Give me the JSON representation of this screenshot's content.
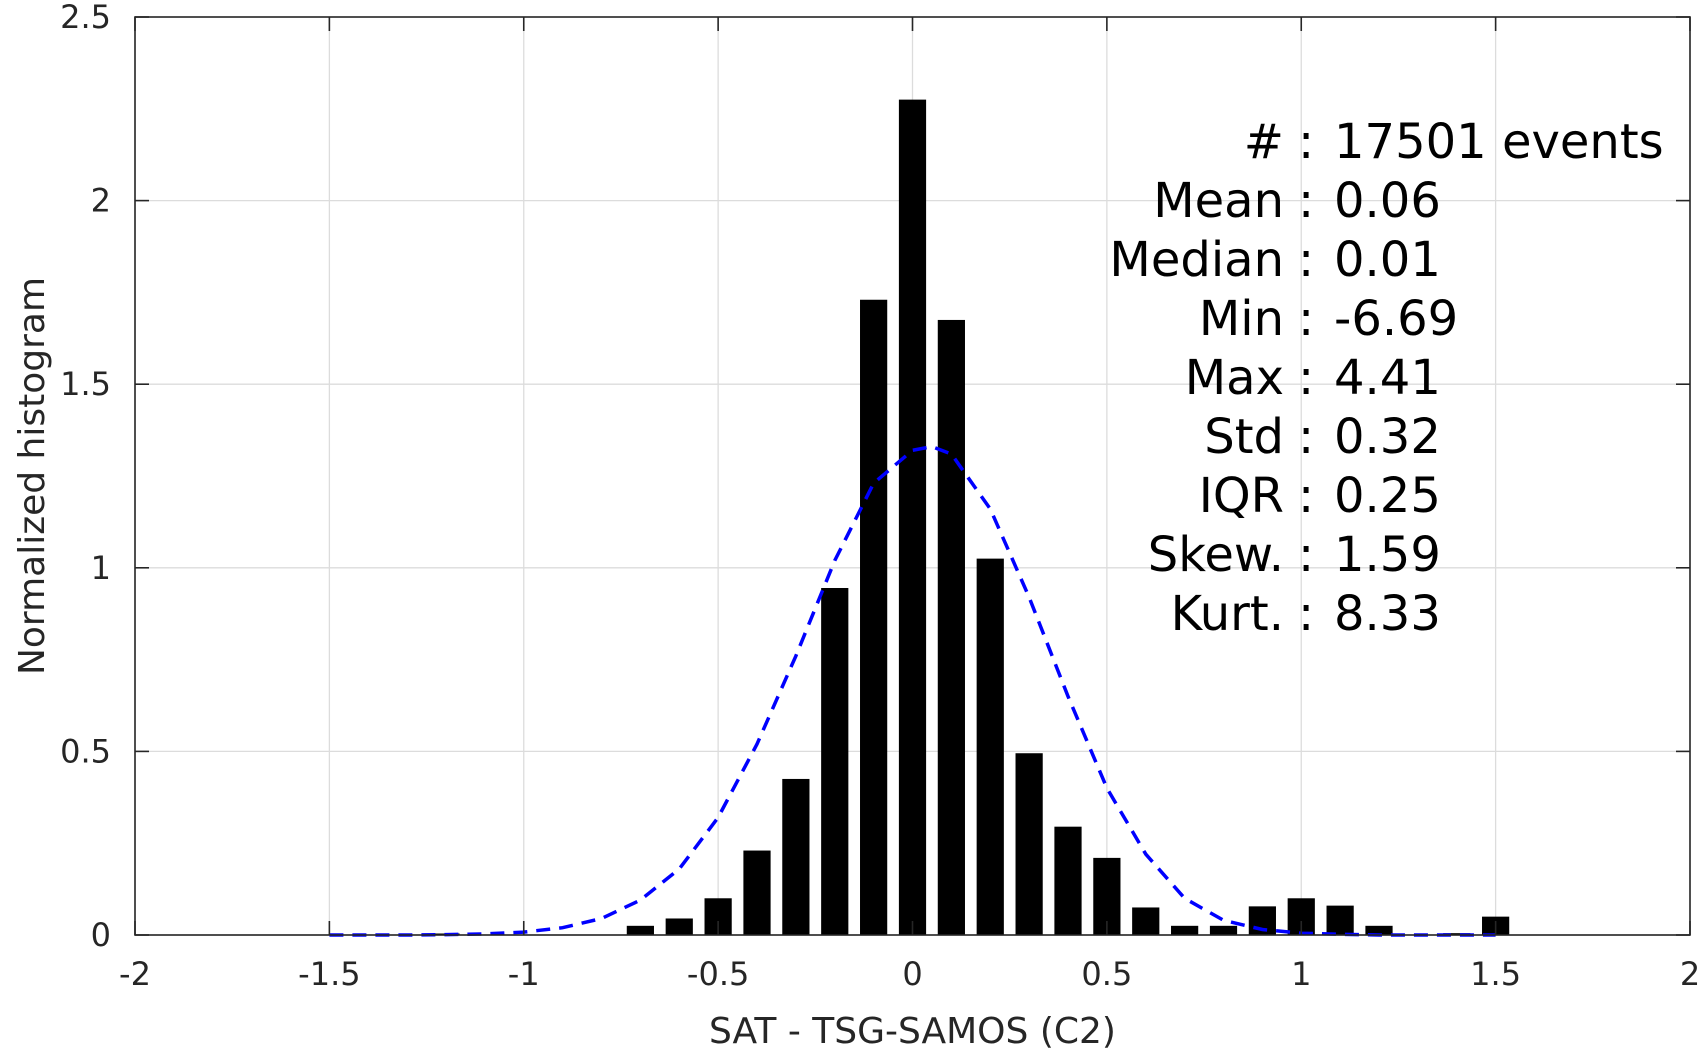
{
  "chart_data": {
    "type": "bar",
    "xlabel": "SAT - TSG-SAMOS (C2)",
    "ylabel": "Normalized histogram",
    "xlim": [
      -2,
      2
    ],
    "ylim": [
      0,
      2.5
    ],
    "xticks": [
      -2,
      -1.5,
      -1,
      -0.5,
      0,
      0.5,
      1,
      1.5,
      2
    ],
    "xtick_labels": [
      "-2",
      "-1.5",
      "-1",
      "-0.5",
      "0",
      "0.5",
      "1",
      "1.5",
      "2"
    ],
    "yticks": [
      0,
      0.5,
      1,
      1.5,
      2,
      2.5
    ],
    "ytick_labels": [
      "0",
      "0.5",
      "1",
      "1.5",
      "2",
      "2.5"
    ],
    "grid": true,
    "bar_width": 0.07,
    "bars": {
      "x": [
        -1.2,
        -0.7,
        -0.6,
        -0.5,
        -0.4,
        -0.3,
        -0.2,
        -0.1,
        0.0,
        0.1,
        0.2,
        0.3,
        0.4,
        0.5,
        0.6,
        0.7,
        0.8,
        0.9,
        1.0,
        1.1,
        1.2,
        1.4,
        1.5
      ],
      "values": [
        0.003,
        0.025,
        0.045,
        0.1,
        0.23,
        0.425,
        0.945,
        1.73,
        2.275,
        1.675,
        1.025,
        0.495,
        0.295,
        0.21,
        0.075,
        0.025,
        0.025,
        0.078,
        0.1,
        0.08,
        0.025,
        0.005,
        0.05
      ],
      "color": "#000000"
    },
    "fit_curve": {
      "style": "dashed",
      "color": "#0000ff",
      "x": [
        -1.5,
        -1.4,
        -1.3,
        -1.2,
        -1.1,
        -1.0,
        -0.9,
        -0.8,
        -0.7,
        -0.6,
        -0.5,
        -0.4,
        -0.3,
        -0.2,
        -0.1,
        0.0,
        0.05,
        0.1,
        0.2,
        0.3,
        0.4,
        0.5,
        0.6,
        0.7,
        0.8,
        0.9,
        1.0,
        1.1,
        1.2,
        1.3,
        1.4,
        1.5
      ],
      "y": [
        0.0,
        0.0,
        0.0,
        0.001,
        0.003,
        0.008,
        0.02,
        0.045,
        0.095,
        0.18,
        0.32,
        0.52,
        0.76,
        1.02,
        1.23,
        1.32,
        1.33,
        1.31,
        1.16,
        0.92,
        0.65,
        0.4,
        0.22,
        0.1,
        0.04,
        0.015,
        0.005,
        0.002,
        0.0,
        0.0,
        0.0,
        0.0
      ]
    },
    "stats": [
      {
        "label": "#",
        "sep": ":",
        "value": "17501 events"
      },
      {
        "label": "Mean",
        "sep": ":",
        "value": "0.06"
      },
      {
        "label": "Median",
        "sep": ":",
        "value": "0.01"
      },
      {
        "label": "Min",
        "sep": ":",
        "value": "-6.69"
      },
      {
        "label": "Max",
        "sep": ":",
        "value": "4.41"
      },
      {
        "label": "Std",
        "sep": ":",
        "value": "0.32"
      },
      {
        "label": "IQR",
        "sep": ":",
        "value": "0.25"
      },
      {
        "label": "Skew.",
        "sep": ":",
        "value": "1.59"
      },
      {
        "label": "Kurt.",
        "sep": ":",
        "value": "8.33"
      }
    ]
  }
}
